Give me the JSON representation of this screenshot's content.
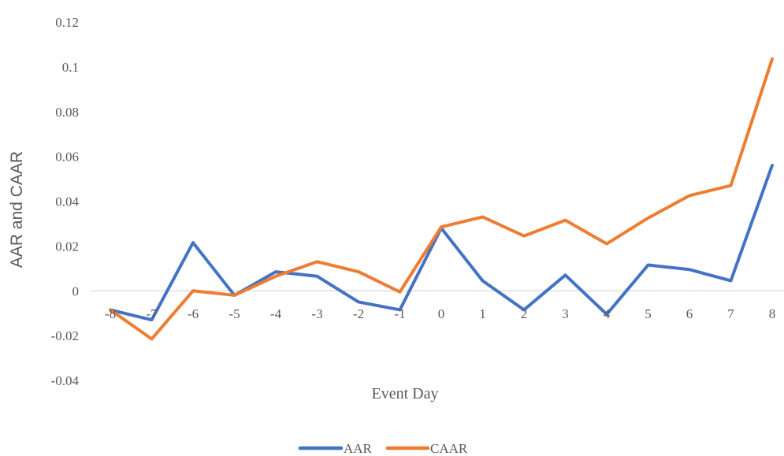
{
  "chart_data": {
    "type": "line",
    "title": "",
    "xlabel": "Event Day",
    "ylabel": "AAR and CAAR",
    "categories": [
      "-8",
      "-7",
      "-6",
      "-5",
      "-4",
      "-3",
      "-2",
      "-1",
      "0",
      "1",
      "2",
      "3",
      "4",
      "5",
      "6",
      "7",
      "8"
    ],
    "ylim": [
      -0.04,
      0.12
    ],
    "yticks": [
      "-0.04",
      "-0.02",
      "0",
      "0.02",
      "0.04",
      "0.06",
      "0.08",
      "0.1",
      "0.12"
    ],
    "ytick_values": [
      -0.04,
      -0.02,
      0,
      0.02,
      0.04,
      0.06,
      0.08,
      0.1,
      0.12
    ],
    "grid": false,
    "legend_position": "bottom",
    "series": [
      {
        "name": "AAR",
        "color": "#4472C4",
        "values": [
          -0.0085,
          -0.013,
          0.0215,
          -0.002,
          0.0085,
          0.0065,
          -0.005,
          -0.0085,
          0.028,
          0.0045,
          -0.0085,
          0.007,
          -0.0105,
          0.0115,
          0.0095,
          0.0045,
          0.056
        ]
      },
      {
        "name": "CAAR",
        "color": "#ED7D31",
        "values": [
          -0.0085,
          -0.0215,
          0.0,
          -0.002,
          0.0065,
          0.013,
          0.0085,
          -0.0005,
          0.0285,
          0.033,
          0.0245,
          0.0315,
          0.021,
          0.0325,
          0.0425,
          0.047,
          0.1035
        ]
      }
    ]
  }
}
